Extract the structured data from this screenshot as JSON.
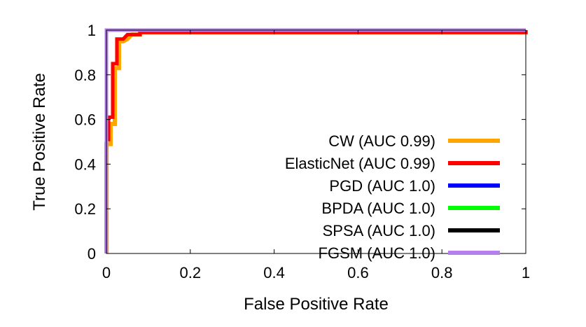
{
  "chart_data": {
    "type": "line",
    "xlabel": "False Positive Rate",
    "ylabel": "True Positive Rate",
    "xlim": [
      0,
      1
    ],
    "ylim": [
      0,
      1
    ],
    "xticks": [
      0,
      0.2,
      0.4,
      0.6,
      0.8,
      1
    ],
    "yticks": [
      0,
      0.2,
      0.4,
      0.6,
      0.8,
      1
    ],
    "xtick_labels": [
      "0",
      "0.2",
      "0.4",
      "0.6",
      "0.8",
      "1"
    ],
    "ytick_labels": [
      "0",
      "0.2",
      "0.4",
      "0.6",
      "0.8",
      "1"
    ],
    "grid": false,
    "legend": "bottom-right",
    "series": [
      {
        "name": "CW (AUC 0.99)",
        "color": "#ffa500",
        "points": [
          [
            0,
            0
          ],
          [
            0,
            0.49
          ],
          [
            0.01,
            0.49
          ],
          [
            0.01,
            0.58
          ],
          [
            0.02,
            0.58
          ],
          [
            0.02,
            0.83
          ],
          [
            0.03,
            0.83
          ],
          [
            0.03,
            0.95
          ],
          [
            0.04,
            0.95
          ],
          [
            0.05,
            0.96
          ],
          [
            0.06,
            0.98
          ],
          [
            0.08,
            0.98
          ],
          [
            0.08,
            0.99
          ],
          [
            1,
            0.99
          ],
          [
            1,
            1
          ]
        ]
      },
      {
        "name": "ElasticNet (AUC 0.99)",
        "color": "#ff0000",
        "points": [
          [
            0,
            0
          ],
          [
            0,
            0.51
          ],
          [
            0.005,
            0.51
          ],
          [
            0.005,
            0.61
          ],
          [
            0.015,
            0.61
          ],
          [
            0.015,
            0.85
          ],
          [
            0.025,
            0.85
          ],
          [
            0.025,
            0.96
          ],
          [
            0.04,
            0.96
          ],
          [
            0.045,
            0.97
          ],
          [
            0.05,
            0.98
          ],
          [
            0.08,
            0.98
          ],
          [
            0.08,
            0.99
          ],
          [
            1,
            0.99
          ],
          [
            1,
            1
          ]
        ]
      },
      {
        "name": "PGD (AUC 1.0)",
        "color": "#0000ff",
        "points": [
          [
            0,
            0
          ],
          [
            0,
            1
          ],
          [
            1,
            1
          ]
        ]
      },
      {
        "name": "BPDA (AUC 1.0)",
        "color": "#00ff00",
        "points": [
          [
            0,
            0
          ],
          [
            0,
            1
          ],
          [
            1,
            1
          ]
        ]
      },
      {
        "name": "SPSA (AUC 1.0)",
        "color": "#000000",
        "points": [
          [
            0,
            0
          ],
          [
            0,
            1
          ],
          [
            1,
            1
          ]
        ]
      },
      {
        "name": "FGSM (AUC 1.0)",
        "color": "#b57fec",
        "points": [
          [
            0,
            0
          ],
          [
            0,
            1
          ],
          [
            1,
            1
          ]
        ]
      }
    ]
  }
}
